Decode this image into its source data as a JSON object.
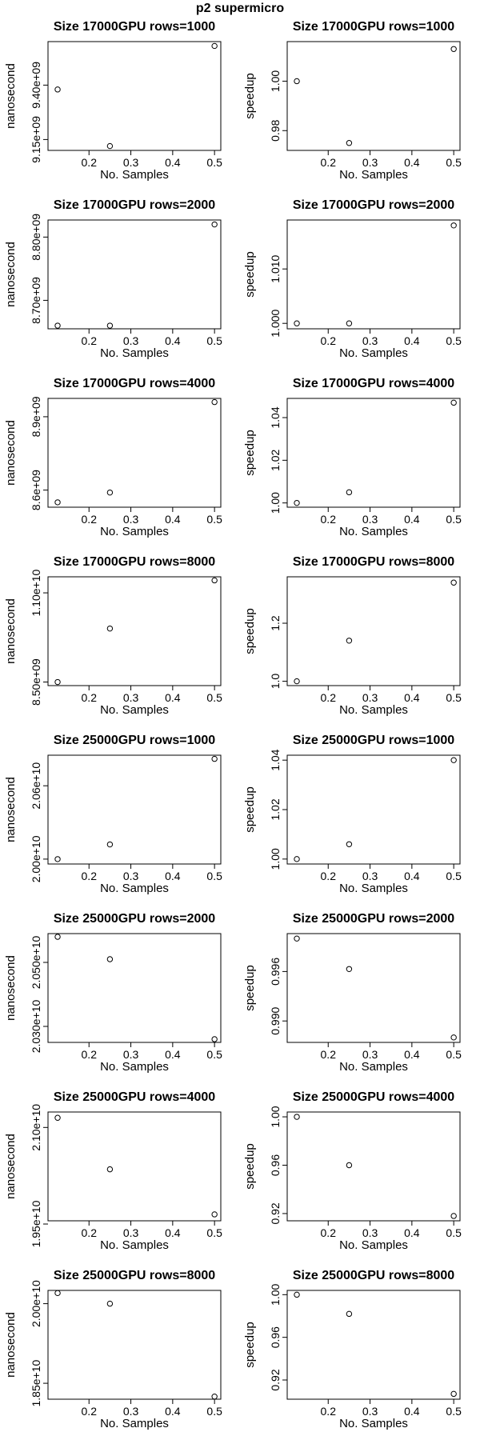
{
  "page": {
    "title": "p2   supermicro"
  },
  "chart_data": [
    {
      "type": "scatter",
      "title": "Size 17000GPU rows=1000",
      "xlabel": "No. Samples",
      "ylabel": "nanosecond",
      "x": [
        0.125,
        0.25,
        0.5
      ],
      "y": [
        9380000000.0,
        9120000000.0,
        9580000000.0
      ],
      "xlim": [
        0.102,
        0.515
      ],
      "ylim": [
        9100000000.0,
        9600000000.0
      ],
      "xticks": [
        0.2,
        0.3,
        0.4,
        0.5
      ],
      "xtick_labels": [
        "0.2",
        "0.3",
        "0.4",
        "0.5"
      ],
      "yticks": [
        9150000000.0,
        9400000000.0
      ],
      "ytick_labels": [
        "9.15e+09",
        "9.40e+09"
      ]
    },
    {
      "type": "scatter",
      "title": "Size 17000GPU rows=1000",
      "xlabel": "No. Samples",
      "ylabel": "speedup",
      "x": [
        0.125,
        0.25,
        0.5
      ],
      "y": [
        1.0,
        0.975,
        1.013
      ],
      "xlim": [
        0.102,
        0.515
      ],
      "ylim": [
        0.972,
        1.016
      ],
      "xticks": [
        0.2,
        0.3,
        0.4,
        0.5
      ],
      "xtick_labels": [
        "0.2",
        "0.3",
        "0.4",
        "0.5"
      ],
      "yticks": [
        0.98,
        1.0
      ],
      "ytick_labels": [
        "0.98",
        "1.00"
      ]
    },
    {
      "type": "scatter",
      "title": "Size 17000GPU rows=2000",
      "xlabel": "No. Samples",
      "ylabel": "nanosecond",
      "x": [
        0.125,
        0.25,
        0.5
      ],
      "y": [
        8660000000.0,
        8660000000.0,
        8820000000.0
      ],
      "xlim": [
        0.102,
        0.515
      ],
      "ylim": [
        8655000000.0,
        8827000000.0
      ],
      "xticks": [
        0.2,
        0.3,
        0.4,
        0.5
      ],
      "xtick_labels": [
        "0.2",
        "0.3",
        "0.4",
        "0.5"
      ],
      "yticks": [
        8700000000.0,
        8800000000.0
      ],
      "ytick_labels": [
        "8.70e+09",
        "8.80e+09"
      ]
    },
    {
      "type": "scatter",
      "title": "Size 17000GPU rows=2000",
      "xlabel": "No. Samples",
      "ylabel": "speedup",
      "x": [
        0.125,
        0.25,
        0.5
      ],
      "y": [
        1.0,
        1.0,
        1.018
      ],
      "xlim": [
        0.102,
        0.515
      ],
      "ylim": [
        0.999,
        1.019
      ],
      "xticks": [
        0.2,
        0.3,
        0.4,
        0.5
      ],
      "xtick_labels": [
        "0.2",
        "0.3",
        "0.4",
        "0.5"
      ],
      "yticks": [
        1.0,
        1.01
      ],
      "ytick_labels": [
        "1.000",
        "1.010"
      ]
    },
    {
      "type": "scatter",
      "title": "Size 17000GPU rows=4000",
      "xlabel": "No. Samples",
      "ylabel": "nanosecond",
      "x": [
        0.125,
        0.25,
        0.5
      ],
      "y": [
        8550000000.0,
        8590000000.0,
        8960000000.0
      ],
      "xlim": [
        0.102,
        0.515
      ],
      "ylim": [
        8530000000.0,
        8975000000.0
      ],
      "xticks": [
        0.2,
        0.3,
        0.4,
        0.5
      ],
      "xtick_labels": [
        "0.2",
        "0.3",
        "0.4",
        "0.5"
      ],
      "yticks": [
        8600000000.0,
        8900000000.0
      ],
      "ytick_labels": [
        "8.6e+09",
        "8.9e+09"
      ]
    },
    {
      "type": "scatter",
      "title": "Size 17000GPU rows=4000",
      "xlabel": "No. Samples",
      "ylabel": "speedup",
      "x": [
        0.125,
        0.25,
        0.5
      ],
      "y": [
        1.0,
        1.005,
        1.047
      ],
      "xlim": [
        0.102,
        0.515
      ],
      "ylim": [
        0.998,
        1.049
      ],
      "xticks": [
        0.2,
        0.3,
        0.4,
        0.5
      ],
      "xtick_labels": [
        "0.2",
        "0.3",
        "0.4",
        "0.5"
      ],
      "yticks": [
        1.0,
        1.02,
        1.04
      ],
      "ytick_labels": [
        "1.00",
        "1.02",
        "1.04"
      ]
    },
    {
      "type": "scatter",
      "title": "Size 17000GPU rows=8000",
      "xlabel": "No. Samples",
      "ylabel": "nanosecond",
      "x": [
        0.125,
        0.25,
        0.5
      ],
      "y": [
        8500000000.0,
        10000000000.0,
        11350000000.0
      ],
      "xlim": [
        0.102,
        0.515
      ],
      "ylim": [
        8400000000.0,
        11450000000.0
      ],
      "xticks": [
        0.2,
        0.3,
        0.4,
        0.5
      ],
      "xtick_labels": [
        "0.2",
        "0.3",
        "0.4",
        "0.5"
      ],
      "yticks": [
        8500000000.0,
        11000000000.0
      ],
      "ytick_labels": [
        "8.50e+09",
        "1.10e+10"
      ]
    },
    {
      "type": "scatter",
      "title": "Size 17000GPU rows=8000",
      "xlabel": "No. Samples",
      "ylabel": "speedup",
      "x": [
        0.125,
        0.25,
        0.5
      ],
      "y": [
        1.0,
        1.14,
        1.34
      ],
      "xlim": [
        0.102,
        0.515
      ],
      "ylim": [
        0.985,
        1.36
      ],
      "xticks": [
        0.2,
        0.3,
        0.4,
        0.5
      ],
      "xtick_labels": [
        "0.2",
        "0.3",
        "0.4",
        "0.5"
      ],
      "yticks": [
        1.0,
        1.2
      ],
      "ytick_labels": [
        "1.0",
        "1.2"
      ]
    },
    {
      "type": "scatter",
      "title": "Size 25000GPU rows=1000",
      "xlabel": "No. Samples",
      "ylabel": "nanosecond",
      "x": [
        0.125,
        0.25,
        0.5
      ],
      "y": [
        20000000000.0,
        20120000000.0,
        20820000000.0
      ],
      "xlim": [
        0.102,
        0.515
      ],
      "ylim": [
        19960000000.0,
        20850000000.0
      ],
      "xticks": [
        0.2,
        0.3,
        0.4,
        0.5
      ],
      "xtick_labels": [
        "0.2",
        "0.3",
        "0.4",
        "0.5"
      ],
      "yticks": [
        20000000000.0,
        20600000000.0
      ],
      "ytick_labels": [
        "2.00e+10",
        "2.06e+10"
      ]
    },
    {
      "type": "scatter",
      "title": "Size 25000GPU rows=1000",
      "xlabel": "No. Samples",
      "ylabel": "speedup",
      "x": [
        0.125,
        0.25,
        0.5
      ],
      "y": [
        1.0,
        1.006,
        1.04
      ],
      "xlim": [
        0.102,
        0.515
      ],
      "ylim": [
        0.998,
        1.042
      ],
      "xticks": [
        0.2,
        0.3,
        0.4,
        0.5
      ],
      "xtick_labels": [
        "0.2",
        "0.3",
        "0.4",
        "0.5"
      ],
      "yticks": [
        1.0,
        1.02,
        1.04
      ],
      "ytick_labels": [
        "1.00",
        "1.02",
        "1.04"
      ]
    },
    {
      "type": "scatter",
      "title": "Size 25000GPU rows=2000",
      "xlabel": "No. Samples",
      "ylabel": "nanosecond",
      "x": [
        0.125,
        0.25,
        0.5
      ],
      "y": [
        20580000000.0,
        20510000000.0,
        20260000000.0
      ],
      "xlim": [
        0.102,
        0.515
      ],
      "ylim": [
        20250000000.0,
        20590000000.0
      ],
      "xticks": [
        0.2,
        0.3,
        0.4,
        0.5
      ],
      "xtick_labels": [
        "0.2",
        "0.3",
        "0.4",
        "0.5"
      ],
      "yticks": [
        20300000000.0,
        20500000000.0
      ],
      "ytick_labels": [
        "2.030e+10",
        "2.050e+10"
      ]
    },
    {
      "type": "scatter",
      "title": "Size 25000GPU rows=2000",
      "xlabel": "No. Samples",
      "ylabel": "speedup",
      "x": [
        0.125,
        0.25,
        0.5
      ],
      "y": [
        1.0,
        0.9963,
        0.988
      ],
      "xlim": [
        0.102,
        0.515
      ],
      "ylim": [
        0.9874,
        1.0006
      ],
      "xticks": [
        0.2,
        0.3,
        0.4,
        0.5
      ],
      "xtick_labels": [
        "0.2",
        "0.3",
        "0.4",
        "0.5"
      ],
      "yticks": [
        0.99,
        0.996
      ],
      "ytick_labels": [
        "0.990",
        "0.996"
      ]
    },
    {
      "type": "scatter",
      "title": "Size 25000GPU rows=4000",
      "xlabel": "No. Samples",
      "ylabel": "nanosecond",
      "x": [
        0.125,
        0.25,
        0.5
      ],
      "y": [
        21150000000.0,
        20350000000.0,
        19650000000.0
      ],
      "xlim": [
        0.102,
        0.515
      ],
      "ylim": [
        19550000000.0,
        21240000000.0
      ],
      "xticks": [
        0.2,
        0.3,
        0.4,
        0.5
      ],
      "xtick_labels": [
        "0.2",
        "0.3",
        "0.4",
        "0.5"
      ],
      "yticks": [
        19500000000.0,
        21000000000.0
      ],
      "ytick_labels": [
        "1.95e+10",
        "2.10e+10"
      ]
    },
    {
      "type": "scatter",
      "title": "Size 25000GPU rows=4000",
      "xlabel": "No. Samples",
      "ylabel": "speedup",
      "x": [
        0.125,
        0.25,
        0.5
      ],
      "y": [
        1.0,
        0.96,
        0.918
      ],
      "xlim": [
        0.102,
        0.515
      ],
      "ylim": [
        0.914,
        1.004
      ],
      "xticks": [
        0.2,
        0.3,
        0.4,
        0.5
      ],
      "xtick_labels": [
        "0.2",
        "0.3",
        "0.4",
        "0.5"
      ],
      "yticks": [
        0.92,
        0.96,
        1.0
      ],
      "ytick_labels": [
        "0.92",
        "0.96",
        "1.00"
      ]
    },
    {
      "type": "scatter",
      "title": "Size 25000GPU rows=8000",
      "xlabel": "No. Samples",
      "ylabel": "nanosecond",
      "x": [
        0.125,
        0.25,
        0.5
      ],
      "y": [
        20200000000.0,
        20000000000.0,
        18250000000.0
      ],
      "xlim": [
        0.102,
        0.515
      ],
      "ylim": [
        18200000000.0,
        20250000000.0
      ],
      "xticks": [
        0.2,
        0.3,
        0.4,
        0.5
      ],
      "xtick_labels": [
        "0.2",
        "0.3",
        "0.4",
        "0.5"
      ],
      "yticks": [
        18500000000.0,
        20000000000.0
      ],
      "ytick_labels": [
        "1.85e+10",
        "2.00e+10"
      ]
    },
    {
      "type": "scatter",
      "title": "Size 25000GPU rows=8000",
      "xlabel": "No. Samples",
      "ylabel": "speedup",
      "x": [
        0.125,
        0.25,
        0.5
      ],
      "y": [
        1.0,
        0.982,
        0.907
      ],
      "xlim": [
        0.102,
        0.515
      ],
      "ylim": [
        0.902,
        1.004
      ],
      "xticks": [
        0.2,
        0.3,
        0.4,
        0.5
      ],
      "xtick_labels": [
        "0.2",
        "0.3",
        "0.4",
        "0.5"
      ],
      "yticks": [
        0.92,
        0.96,
        1.0
      ],
      "ytick_labels": [
        "0.92",
        "0.96",
        "1.00"
      ]
    }
  ]
}
